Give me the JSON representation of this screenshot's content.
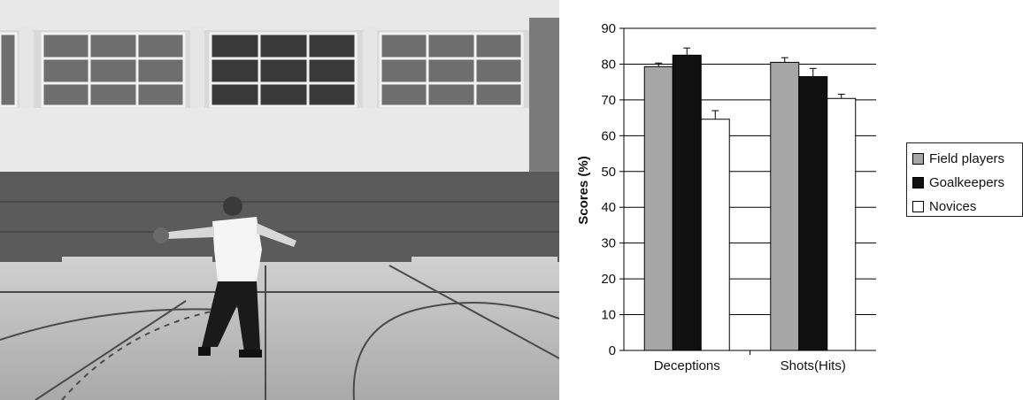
{
  "chart_data": {
    "type": "bar",
    "ylabel": "Scores (%)",
    "xlabel": "",
    "ylim": [
      0,
      90
    ],
    "yticks": [
      0,
      10,
      20,
      30,
      40,
      50,
      60,
      70,
      80,
      90
    ],
    "categories": [
      "Deceptions",
      "Shots(Hits)"
    ],
    "series": [
      {
        "name": "Field players",
        "values": [
          79.3,
          80.5
        ],
        "errors": [
          1.0,
          1.3
        ],
        "color": "#a6a6a6"
      },
      {
        "name": "Goalkeepers",
        "values": [
          82.5,
          76.5
        ],
        "errors": [
          2.0,
          2.3
        ],
        "color": "#111111"
      },
      {
        "name": "Novices",
        "values": [
          64.6,
          70.4
        ],
        "errors": [
          2.4,
          1.2
        ],
        "color": "#ffffff"
      }
    ],
    "grid": true,
    "legend_position": "right"
  },
  "photo": {
    "description_icon": "handball-player-photo-icon"
  }
}
